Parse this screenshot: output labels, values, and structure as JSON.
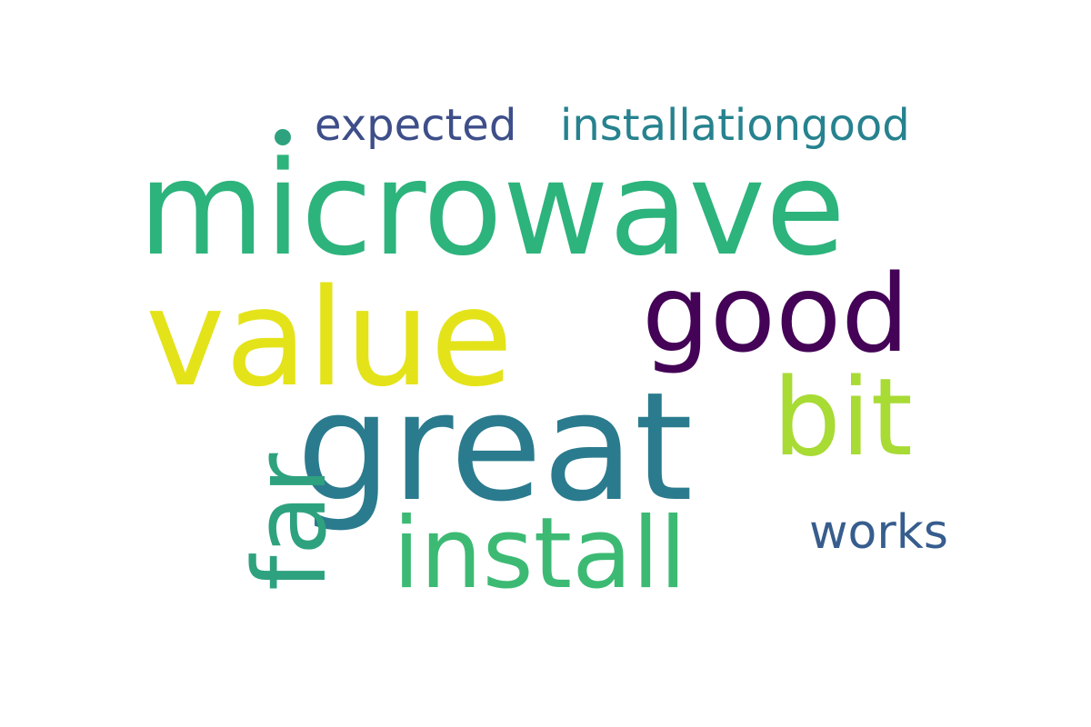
{
  "words": [
    {
      "key": "microwave",
      "text": "microwave",
      "color": "#2db37c"
    },
    {
      "key": "value",
      "text": "value",
      "color": "#e4e31a"
    },
    {
      "key": "great",
      "text": "great",
      "color": "#2b7b8e"
    },
    {
      "key": "good",
      "text": "good",
      "color": "#440356"
    },
    {
      "key": "bit",
      "text": "bit",
      "color": "#a8db34"
    },
    {
      "key": "install",
      "text": "install",
      "color": "#3cba74"
    },
    {
      "key": "far",
      "text": "far",
      "color": "#2ea27f"
    },
    {
      "key": "works",
      "text": "works",
      "color": "#365d8d"
    },
    {
      "key": "expected",
      "text": "expected",
      "color": "#3d4e8a"
    },
    {
      "key": "installationgood",
      "text": "installationgood",
      "color": "#26828e"
    }
  ],
  "dot_color": "#2ea27f"
}
